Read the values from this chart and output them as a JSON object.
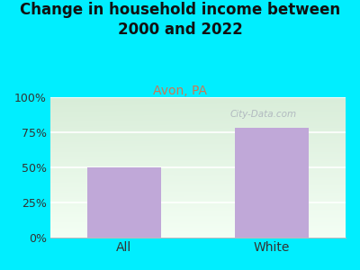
{
  "title": "Change in household income between\n2000 and 2022",
  "subtitle": "Avon, PA",
  "categories": [
    "All",
    "White"
  ],
  "values": [
    50,
    78
  ],
  "bar_color": "#c0a8d8",
  "title_fontsize": 12,
  "title_color": "#111111",
  "subtitle_fontsize": 10,
  "subtitle_color": "#cc7755",
  "ytick_color": "#333333",
  "xtick_color": "#333333",
  "background_outer": "#00eeff",
  "plot_grad_top": "#d8edd8",
  "plot_grad_bottom": "#f4fff4",
  "plot_right_color": "#e8e8ee",
  "ylim": [
    0,
    100
  ],
  "yticks": [
    0,
    25,
    50,
    75,
    100
  ],
  "ytick_labels": [
    "0%",
    "25%",
    "50%",
    "75%",
    "100%"
  ],
  "watermark": "City-Data.com",
  "tick_fontsize": 9,
  "xtick_fontsize": 10,
  "bar_positions": [
    0,
    1
  ],
  "bar_width": 0.5
}
